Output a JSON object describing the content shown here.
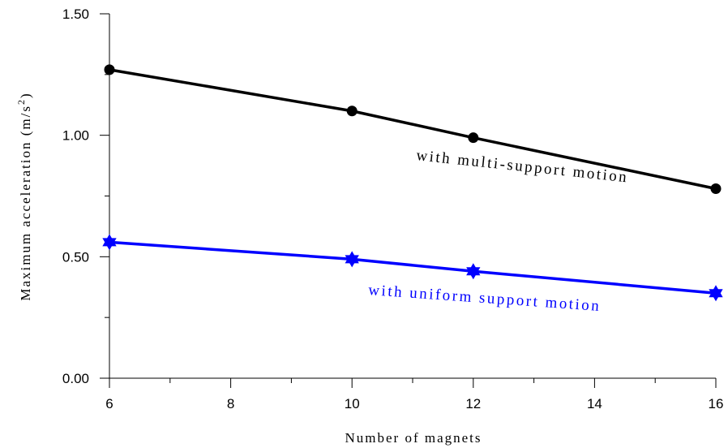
{
  "chart_data": {
    "type": "line",
    "xlabel": "Number of magnets",
    "ylabel_main": "Maximum acceleration (m/s",
    "ylabel_sup": "2",
    "ylabel_end": ")",
    "xlim": [
      6,
      16
    ],
    "ylim": [
      0,
      1.5
    ],
    "xticks": [
      6,
      8,
      10,
      12,
      14,
      16
    ],
    "xtick_labels": [
      "6",
      "8",
      "10",
      "12",
      "14",
      "16"
    ],
    "yticks": [
      0,
      0.5,
      1.0,
      1.5
    ],
    "ytick_labels": [
      "0.00",
      "0.50",
      "1.00",
      "1.50"
    ],
    "grid": false,
    "series": [
      {
        "name": "with multi-support motion",
        "color": "#000000",
        "marker": "circle",
        "x": [
          6,
          10,
          12,
          16
        ],
        "y": [
          1.27,
          1.1,
          0.99,
          0.78
        ]
      },
      {
        "name": "with uniform support motion",
        "color": "#0000ff",
        "marker": "star",
        "x": [
          6,
          10,
          12,
          16
        ],
        "y": [
          0.56,
          0.49,
          0.44,
          0.35
        ]
      }
    ]
  }
}
